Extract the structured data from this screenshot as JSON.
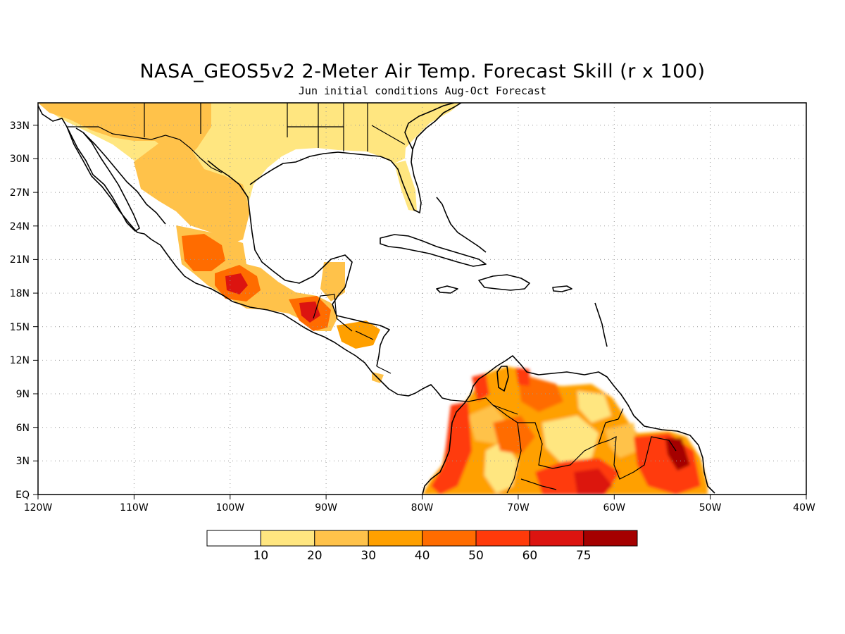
{
  "figure": {
    "title": "NASA_GEOS5v2 2-Meter Air Temp. Forecast Skill (r x 100)",
    "subtitle": "Jun initial conditions  Aug-Oct Forecast"
  },
  "map": {
    "projection": "lat-lon",
    "lon_range": [
      -120,
      -40
    ],
    "lat_range": [
      0,
      35
    ],
    "grid": true,
    "x_tick_labels": [
      "120W",
      "110W",
      "100W",
      "90W",
      "80W",
      "70W",
      "60W",
      "50W",
      "40W"
    ],
    "y_tick_labels": [
      "EQ",
      "3N",
      "6N",
      "9N",
      "12N",
      "15N",
      "18N",
      "21N",
      "24N",
      "27N",
      "30N",
      "33N"
    ]
  },
  "colorbar": {
    "labels": [
      "10",
      "20",
      "30",
      "40",
      "50",
      "60",
      "75"
    ],
    "colors": [
      "#ffffff",
      "#ffe680",
      "#ffc24a",
      "#ffa000",
      "#ff6c00",
      "#ff3a0a",
      "#dc1410",
      "#a50000"
    ]
  },
  "chart_data": {
    "type": "heatmap",
    "title": "NASA_GEOS5v2 2-Meter Air Temp. Forecast Skill (r x 100)",
    "subtitle": "Jun initial conditions  Aug-Oct Forecast",
    "xlim": [
      -120,
      -40
    ],
    "ylim": [
      0,
      35
    ],
    "levels": [
      10,
      20,
      30,
      40,
      50,
      60,
      75
    ],
    "grid": true,
    "colors": {
      "lt10": "#ffffff",
      "c10": "#ffe680",
      "c20": "#ffc24a",
      "c30": "#ffa000",
      "c40": "#ff6c00",
      "c50": "#ff3a0a",
      "c60": "#dc1410",
      "c75": "#a50000"
    }
  }
}
